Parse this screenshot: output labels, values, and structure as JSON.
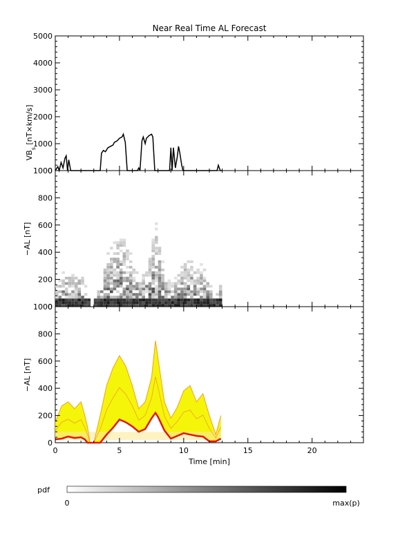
{
  "title": "Near Real Time AL Forecast",
  "xlabel": "Time [min]",
  "x_ticks": [
    "0",
    "5",
    "10",
    "15",
    "20"
  ],
  "xlim": [
    0,
    24
  ],
  "colorbar": {
    "label": "pdf",
    "min_label": "0",
    "max_label": "max(p)"
  },
  "colors": {
    "median": "#e8140a",
    "band_outer": "#f0a020",
    "band_fill": "#f5f50a",
    "band_faint": "#fce99a"
  },
  "chart_data": [
    {
      "type": "line",
      "ylabel": "VB_s [nT×km/s]",
      "ylim": [
        0,
        5000
      ],
      "y_ticks": [
        "0",
        "1000",
        "2000",
        "3000",
        "4000",
        "5000"
      ],
      "x": [
        0,
        0.2,
        0.3,
        0.45,
        0.6,
        0.75,
        0.85,
        0.95,
        1.05,
        1.2,
        3.5,
        3.6,
        3.75,
        3.9,
        4.1,
        4.3,
        4.5,
        4.6,
        4.8,
        5.0,
        5.2,
        5.3,
        5.45,
        5.6,
        6.4,
        6.5,
        6.6,
        6.75,
        6.85,
        7.0,
        7.1,
        7.3,
        7.5,
        7.6,
        7.75,
        7.85,
        8.9,
        9.0,
        9.1,
        9.2,
        9.35,
        9.5,
        9.6,
        9.7,
        9.85,
        9.95,
        10.05,
        10.2,
        10.3,
        12.6,
        12.7,
        12.85,
        12.95
      ],
      "values": [
        0,
        150,
        0,
        300,
        100,
        450,
        550,
        0,
        400,
        0,
        0,
        650,
        750,
        700,
        850,
        900,
        950,
        1050,
        1100,
        1200,
        1250,
        1350,
        1050,
        0,
        0,
        100,
        0,
        1100,
        1250,
        1000,
        1200,
        1300,
        1350,
        1250,
        0,
        0,
        0,
        850,
        0,
        850,
        100,
        500,
        900,
        650,
        200,
        0,
        0,
        0,
        0,
        0,
        200,
        0,
        0
      ]
    },
    {
      "type": "heatmap",
      "ylabel": "−AL [nT]",
      "ylim": [
        0,
        1000
      ],
      "y_ticks": [
        "0",
        "200",
        "400",
        "600",
        "800",
        "1000"
      ],
      "x_range": [
        0,
        13
      ],
      "description_values": "probability density of −AL per 1-minute column, concentrated near 0–100 nT, spreading up to ~780 nT around t = 7.5–8 min"
    },
    {
      "type": "area",
      "ylabel": "−AL [nT]",
      "ylim": [
        0,
        1000
      ],
      "y_ticks": [
        "0",
        "200",
        "400",
        "600",
        "800",
        "1000"
      ],
      "x": [
        0,
        0.5,
        1,
        1.5,
        2,
        2.3,
        2.5,
        2.7,
        3,
        3.5,
        4,
        4.5,
        5,
        5.5,
        6,
        6.5,
        7,
        7.5,
        7.8,
        8,
        8.5,
        9,
        9.5,
        10,
        10.5,
        11,
        11.5,
        12,
        12.5,
        12.9
      ],
      "series": [
        {
          "name": "median",
          "values": [
            25,
            30,
            45,
            35,
            40,
            25,
            0,
            0,
            0,
            0,
            60,
            110,
            170,
            150,
            120,
            80,
            100,
            180,
            220,
            190,
            90,
            30,
            50,
            70,
            60,
            50,
            45,
            10,
            10,
            30
          ]
        },
        {
          "name": "upper",
          "values": [
            150,
            270,
            300,
            250,
            300,
            200,
            120,
            0,
            0,
            200,
            420,
            550,
            640,
            560,
            420,
            250,
            300,
            480,
            750,
            620,
            300,
            180,
            260,
            380,
            420,
            300,
            360,
            200,
            60,
            200
          ]
        }
      ]
    }
  ]
}
